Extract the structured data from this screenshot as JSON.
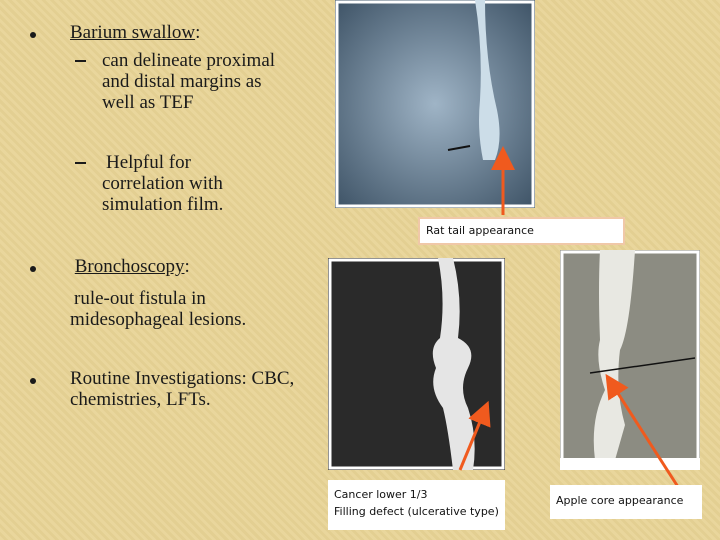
{
  "bullets": [
    {
      "title": "Barium swallow",
      "suffix": ":",
      "subs": [
        "can delineate proximal and distal margins as well as TEF",
        "Helpful for correlation with simulation film."
      ]
    },
    {
      "title": "Bronchoscopy",
      "suffix": ":",
      "text": "rule-out fistula in midesophageal lesions."
    },
    {
      "title": "Routine Investigations: CBC, chemistries, LFTs."
    }
  ],
  "captions": {
    "top": "Rat tail appearance",
    "middle": [
      "Cancer lower 1/3",
      "Filling defect (ulcerative type)"
    ],
    "right": "Apple core appearance"
  }
}
